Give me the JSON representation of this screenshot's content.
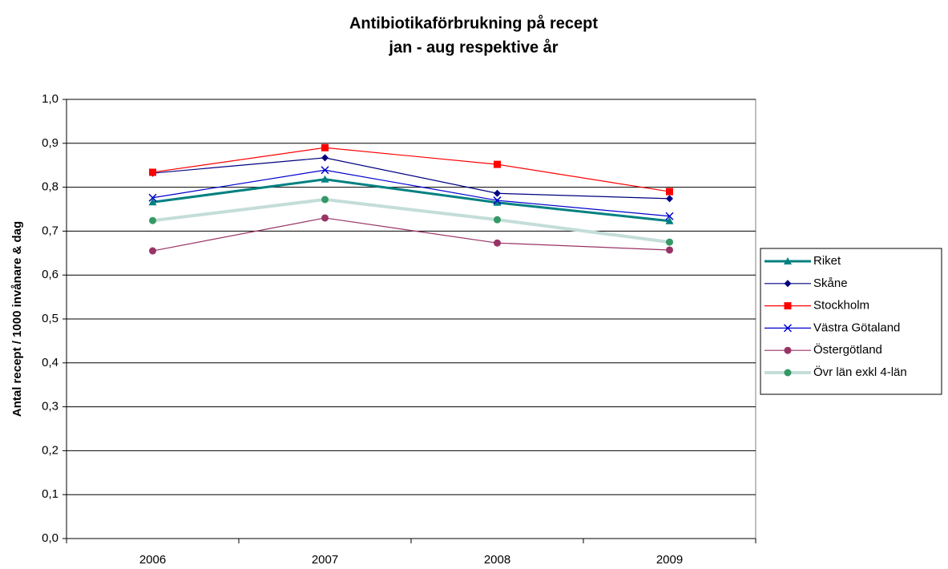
{
  "chart_data": {
    "type": "line",
    "title": "Antibiotikaförbrukning på recept",
    "subtitle": "jan - aug respektive år",
    "y_label": "Antal recept / 1000 invånare & dag",
    "categories": [
      "2006",
      "2007",
      "2008",
      "2009"
    ],
    "ylim": [
      0,
      1
    ],
    "yticks": [
      {
        "value": 0,
        "label": "0,0"
      },
      {
        "value": 0.1,
        "label": "0,1"
      },
      {
        "value": 0.2,
        "label": "0,2"
      },
      {
        "value": 0.3,
        "label": "0,3"
      },
      {
        "value": 0.4,
        "label": "0,4"
      },
      {
        "value": 0.5,
        "label": "0,5"
      },
      {
        "value": 0.6,
        "label": "0,6"
      },
      {
        "value": 0.7,
        "label": "0,7"
      },
      {
        "value": 0.8,
        "label": "0,8"
      },
      {
        "value": 0.9,
        "label": "0,9"
      },
      {
        "value": 1,
        "label": "1,0"
      }
    ],
    "grid": true,
    "legend": "right",
    "series": [
      {
        "name": "Riket",
        "color": "#008080",
        "marker": "triangle",
        "marker_color": "#008080",
        "line_width": 3,
        "values": [
          0.766,
          0.818,
          0.765,
          0.723
        ]
      },
      {
        "name": "Skåne",
        "color": "#000080",
        "marker": "diamond",
        "marker_color": "#000080",
        "line_width": 1.2,
        "values": [
          0.832,
          0.867,
          0.786,
          0.774
        ]
      },
      {
        "name": "Stockholm",
        "color": "#ff0000",
        "marker": "square",
        "marker_color": "#ff0000",
        "line_width": 1.2,
        "values": [
          0.834,
          0.89,
          0.852,
          0.79
        ]
      },
      {
        "name": "Västra Götaland",
        "color": "#0000cc",
        "marker": "x",
        "marker_color": "#0000cc",
        "line_width": 1.2,
        "values": [
          0.776,
          0.839,
          0.77,
          0.734
        ]
      },
      {
        "name": "Östergötland",
        "color": "#993366",
        "marker": "circle",
        "marker_color": "#993366",
        "line_width": 1.2,
        "values": [
          0.655,
          0.73,
          0.673,
          0.657
        ]
      },
      {
        "name": "Övr län exkl 4-län",
        "color": "#c4ddd8",
        "marker": "circle",
        "marker_color": "#339966",
        "line_width": 4,
        "values": [
          0.724,
          0.772,
          0.726,
          0.675
        ]
      }
    ]
  }
}
